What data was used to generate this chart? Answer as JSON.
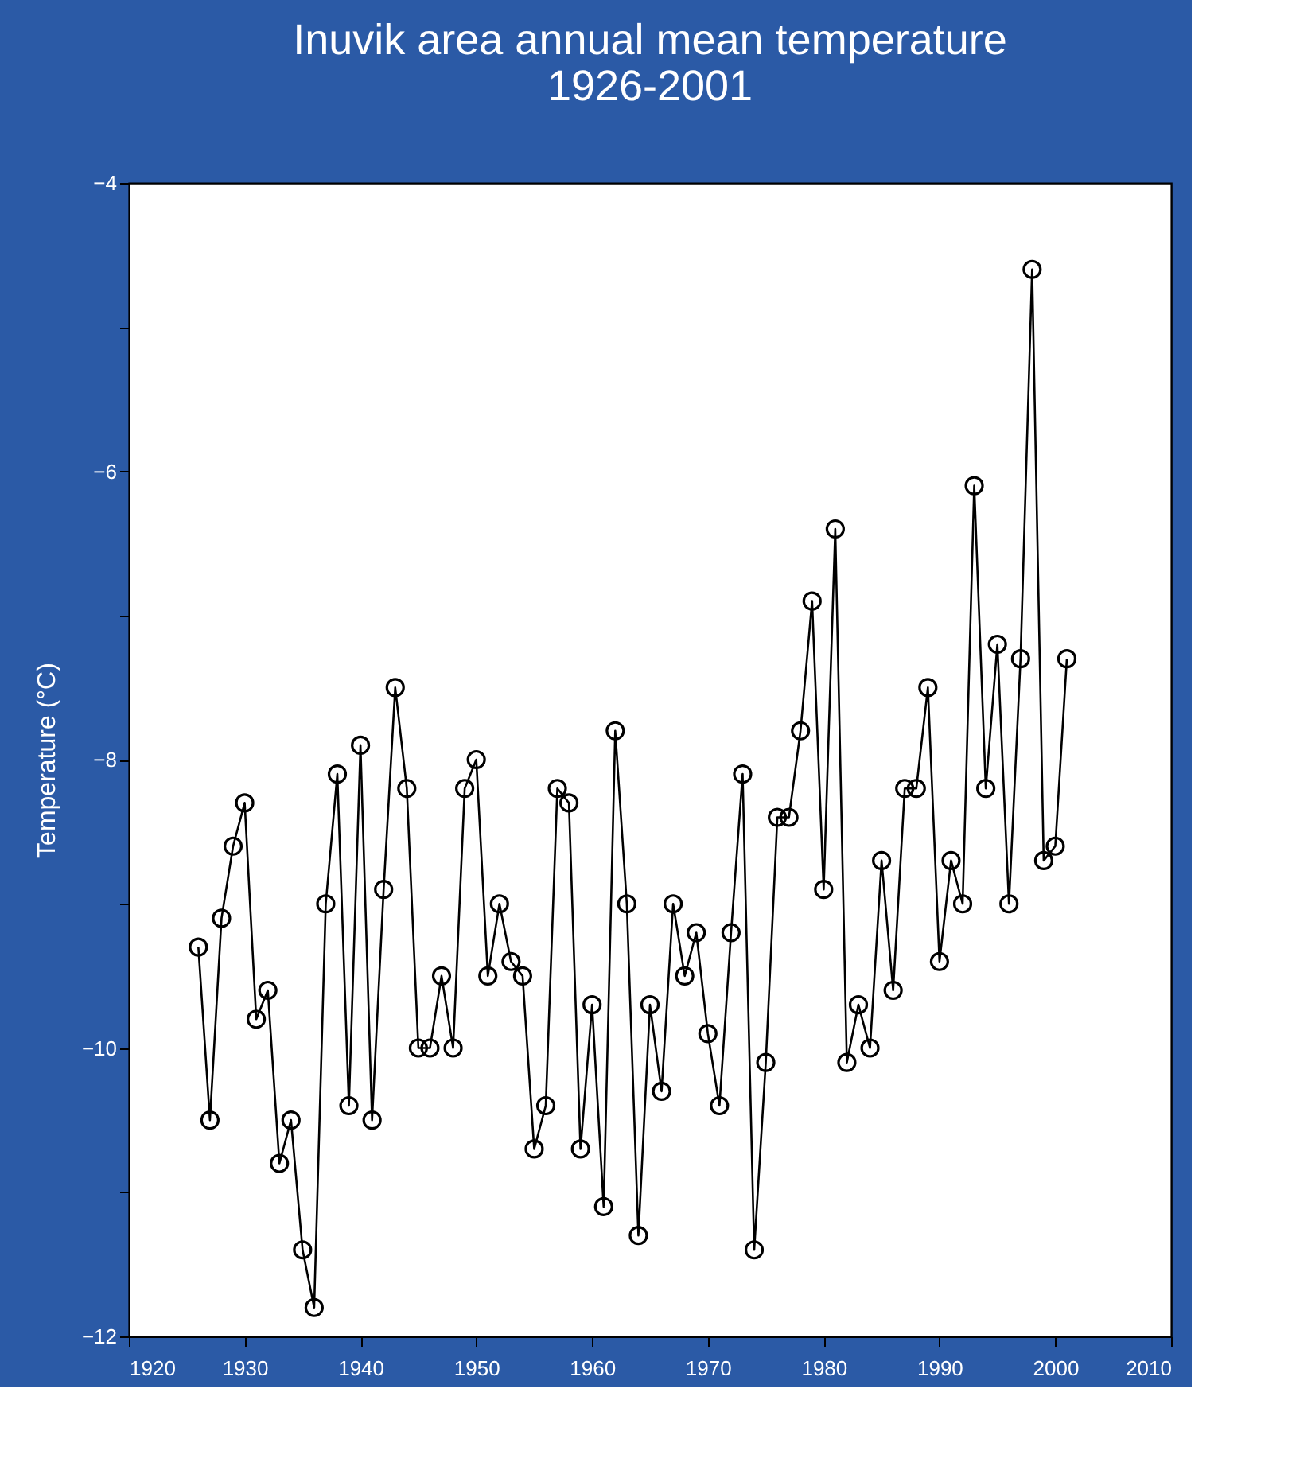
{
  "chart_data": {
    "type": "line",
    "title": [
      "Inuvik area annual mean temperature",
      "1926-2001"
    ],
    "ylabel": "Temperature (°C)",
    "x": [
      1926,
      1927,
      1928,
      1929,
      1930,
      1931,
      1932,
      1933,
      1934,
      1935,
      1936,
      1937,
      1938,
      1939,
      1940,
      1941,
      1942,
      1943,
      1944,
      1945,
      1946,
      1947,
      1948,
      1949,
      1950,
      1951,
      1952,
      1953,
      1954,
      1955,
      1956,
      1957,
      1958,
      1959,
      1960,
      1961,
      1962,
      1963,
      1964,
      1965,
      1966,
      1967,
      1968,
      1969,
      1970,
      1971,
      1972,
      1973,
      1974,
      1975,
      1976,
      1977,
      1978,
      1979,
      1980,
      1981,
      1982,
      1983,
      1984,
      1985,
      1986,
      1987,
      1988,
      1989,
      1990,
      1991,
      1992,
      1993,
      1994,
      1995,
      1996,
      1997,
      1998,
      1999,
      2000,
      2001
    ],
    "series": [
      {
        "color": "#000000",
        "values": [
          -9.3,
          -10.5,
          -9.1,
          -8.6,
          -8.3,
          -9.8,
          -9.6,
          -10.8,
          -10.5,
          -11.4,
          -11.8,
          -9.0,
          -8.1,
          -10.4,
          -7.9,
          -10.5,
          -8.9,
          -7.5,
          -8.2,
          -10.0,
          -10.0,
          -9.5,
          -10.0,
          -8.2,
          -8.0,
          -9.5,
          -9.0,
          -9.4,
          -9.5,
          -10.7,
          -10.4,
          -8.2,
          -8.3,
          -10.7,
          -9.7,
          -11.1,
          -7.8,
          -9.0,
          -11.3,
          -9.7,
          -10.3,
          -9.0,
          -9.5,
          -9.2,
          -9.9,
          -10.4,
          -9.2,
          -8.1,
          -11.4,
          -10.1,
          -8.4,
          -8.4,
          -7.8,
          -6.9,
          -8.9,
          -6.4,
          -10.1,
          -9.7,
          -10.0,
          -8.7,
          -9.6,
          -8.2,
          -8.2,
          -7.5,
          -9.4,
          -8.7,
          -9.0,
          -6.1,
          -8.2,
          -7.2,
          -9.0,
          -7.3,
          -4.6,
          -8.7,
          -8.6,
          -7.3
        ]
      }
    ],
    "xlim": [
      1920,
      2010
    ],
    "xticks": [
      1920,
      1930,
      1940,
      1950,
      1960,
      1970,
      1980,
      1990,
      2000,
      2010
    ],
    "ylim": [
      -12,
      -4
    ],
    "yticks": [
      -12,
      {
        "value": -11,
        "label": null
      },
      -10,
      {
        "value": -9,
        "label": null
      },
      -8,
      {
        "value": -7,
        "label": null
      },
      -6,
      {
        "value": -5,
        "label": null
      },
      -4
    ],
    "grid": false,
    "marker": "circle",
    "line_style": "solid"
  }
}
